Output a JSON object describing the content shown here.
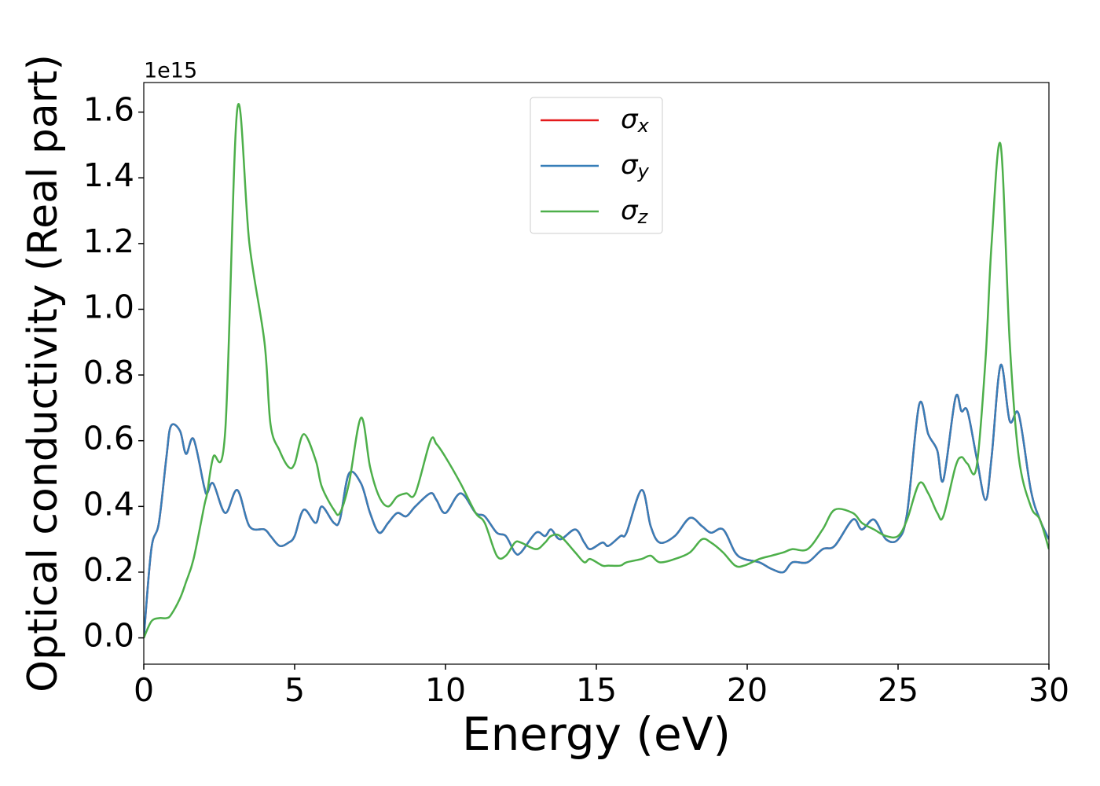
{
  "chart_data": {
    "type": "line",
    "xlabel": "Energy (eV)",
    "ylabel": "Optical conductivity (Real part)",
    "y_offset_label": "1e15",
    "x": [
      0,
      0.25,
      0.5,
      0.75,
      0.9,
      1.2,
      1.4,
      1.65,
      2.0,
      2.1,
      2.3,
      2.7,
      3.1,
      3.5,
      4.0,
      4.2,
      4.5,
      4.8,
      5.0,
      5.3,
      5.7,
      5.9,
      6.3,
      6.5,
      6.8,
      7.2,
      7.5,
      7.8,
      8.1,
      8.4,
      8.7,
      9.0,
      9.5,
      9.7,
      10.0,
      10.5,
      11.0,
      11.3,
      11.7,
      12.0,
      12.3,
      12.5,
      13.0,
      13.3,
      13.5,
      13.8,
      14.3,
      14.6,
      14.8,
      15.2,
      15.4,
      15.8,
      16.0,
      16.5,
      16.8,
      17.1,
      17.6,
      18.1,
      18.5,
      18.8,
      19.2,
      19.6,
      19.9,
      20.4,
      20.8,
      21.2,
      21.5,
      22.0,
      22.5,
      22.9,
      23.5,
      23.8,
      24.2,
      24.6,
      25.0,
      25.3,
      25.7,
      26.0,
      26.3,
      26.5,
      26.9,
      27.1,
      27.3,
      27.6,
      27.9,
      28.1,
      28.4,
      28.7,
      29.0,
      29.4,
      29.7,
      30.0
    ],
    "series": [
      {
        "name": "σx",
        "color": "#e41a1c",
        "values": [
          0,
          0.27,
          0.35,
          0.55,
          0.645,
          0.63,
          0.56,
          0.605,
          0.46,
          0.44,
          0.47,
          0.38,
          0.45,
          0.34,
          0.33,
          0.31,
          0.28,
          0.29,
          0.31,
          0.39,
          0.35,
          0.4,
          0.35,
          0.36,
          0.5,
          0.47,
          0.38,
          0.32,
          0.35,
          0.38,
          0.37,
          0.4,
          0.44,
          0.42,
          0.38,
          0.44,
          0.38,
          0.37,
          0.32,
          0.31,
          0.26,
          0.26,
          0.32,
          0.31,
          0.33,
          0.3,
          0.33,
          0.29,
          0.27,
          0.29,
          0.28,
          0.31,
          0.32,
          0.45,
          0.34,
          0.29,
          0.31,
          0.365,
          0.34,
          0.32,
          0.33,
          0.26,
          0.24,
          0.23,
          0.21,
          0.2,
          0.23,
          0.23,
          0.27,
          0.28,
          0.36,
          0.33,
          0.36,
          0.3,
          0.3,
          0.38,
          0.71,
          0.62,
          0.57,
          0.48,
          0.73,
          0.69,
          0.69,
          0.55,
          0.42,
          0.55,
          0.83,
          0.66,
          0.68,
          0.45,
          0.36,
          0.3
        ]
      },
      {
        "name": "σy",
        "color": "#377eb8",
        "values": [
          0,
          0.27,
          0.35,
          0.55,
          0.645,
          0.63,
          0.56,
          0.605,
          0.46,
          0.44,
          0.47,
          0.38,
          0.45,
          0.34,
          0.33,
          0.31,
          0.28,
          0.29,
          0.31,
          0.39,
          0.35,
          0.4,
          0.35,
          0.36,
          0.5,
          0.47,
          0.38,
          0.32,
          0.35,
          0.38,
          0.37,
          0.4,
          0.44,
          0.42,
          0.38,
          0.44,
          0.38,
          0.37,
          0.32,
          0.31,
          0.26,
          0.26,
          0.32,
          0.31,
          0.33,
          0.3,
          0.33,
          0.29,
          0.27,
          0.29,
          0.28,
          0.31,
          0.32,
          0.45,
          0.34,
          0.29,
          0.31,
          0.365,
          0.34,
          0.32,
          0.33,
          0.26,
          0.24,
          0.23,
          0.21,
          0.2,
          0.23,
          0.23,
          0.27,
          0.28,
          0.36,
          0.33,
          0.36,
          0.3,
          0.3,
          0.38,
          0.71,
          0.62,
          0.57,
          0.48,
          0.73,
          0.69,
          0.69,
          0.55,
          0.42,
          0.55,
          0.83,
          0.66,
          0.68,
          0.45,
          0.36,
          0.3
        ]
      },
      {
        "name": "σz",
        "color": "#4daf4a",
        "values": [
          0,
          0.05,
          0.06,
          0.06,
          0.07,
          0.12,
          0.17,
          0.24,
          0.4,
          0.44,
          0.55,
          0.63,
          1.61,
          1.2,
          0.9,
          0.65,
          0.57,
          0.52,
          0.53,
          0.62,
          0.54,
          0.46,
          0.39,
          0.38,
          0.47,
          0.67,
          0.52,
          0.43,
          0.4,
          0.43,
          0.44,
          0.44,
          0.6,
          0.59,
          0.55,
          0.47,
          0.38,
          0.35,
          0.25,
          0.25,
          0.29,
          0.29,
          0.27,
          0.29,
          0.31,
          0.31,
          0.26,
          0.23,
          0.24,
          0.22,
          0.22,
          0.22,
          0.23,
          0.24,
          0.25,
          0.23,
          0.24,
          0.26,
          0.3,
          0.29,
          0.26,
          0.22,
          0.22,
          0.24,
          0.25,
          0.26,
          0.27,
          0.27,
          0.33,
          0.39,
          0.38,
          0.35,
          0.33,
          0.31,
          0.31,
          0.36,
          0.47,
          0.44,
          0.38,
          0.37,
          0.52,
          0.55,
          0.53,
          0.52,
          0.85,
          1.2,
          1.5,
          0.9,
          0.55,
          0.4,
          0.36,
          0.27
        ]
      }
    ],
    "xlim": [
      0,
      30
    ],
    "xticks": [
      0,
      5,
      10,
      15,
      20,
      25,
      30
    ],
    "ylim": [
      -0.08,
      1.69
    ],
    "yticks": [
      {
        "value": 0,
        "label": "0.0"
      },
      0.2,
      0.4,
      0.6,
      0.8,
      {
        "value": 1,
        "label": "1.0"
      },
      1.2,
      1.4,
      1.6
    ],
    "grid": false,
    "legend": "upper center"
  }
}
